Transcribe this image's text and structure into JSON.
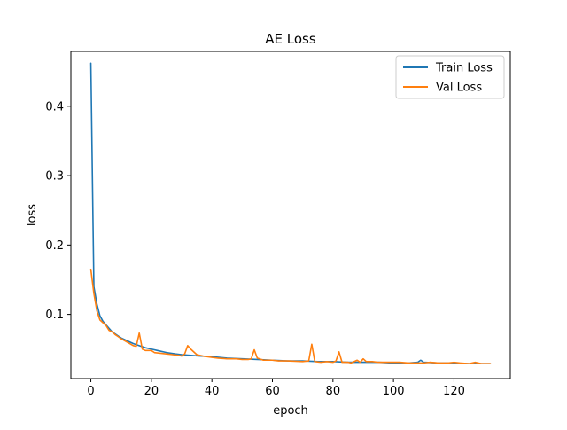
{
  "chart_data": {
    "type": "line",
    "title": "AE Loss",
    "xlabel": "epoch",
    "ylabel": "loss",
    "xlim": [
      -6.6,
      138.6
    ],
    "ylim": [
      0.0075,
      0.479
    ],
    "xticks": [
      0,
      20,
      40,
      60,
      80,
      100,
      120
    ],
    "yticks": [
      0.1,
      0.2,
      0.3,
      0.4
    ],
    "ytick_labels": [
      "0.1",
      "0.2",
      "0.3",
      "0.4"
    ],
    "grid": false,
    "legend_position": "top-right",
    "series": [
      {
        "name": "Train Loss",
        "color": "#1f77b4",
        "points": [
          [
            0,
            0.462
          ],
          [
            1,
            0.14
          ],
          [
            2,
            0.115
          ],
          [
            3,
            0.098
          ],
          [
            4,
            0.09
          ],
          [
            5,
            0.085
          ],
          [
            6,
            0.08
          ],
          [
            7,
            0.075
          ],
          [
            8,
            0.072
          ],
          [
            9,
            0.069
          ],
          [
            10,
            0.066
          ],
          [
            12,
            0.062
          ],
          [
            14,
            0.058
          ],
          [
            16,
            0.055
          ],
          [
            18,
            0.052
          ],
          [
            20,
            0.05
          ],
          [
            22,
            0.048
          ],
          [
            25,
            0.045
          ],
          [
            28,
            0.043
          ],
          [
            30,
            0.042
          ],
          [
            33,
            0.041
          ],
          [
            36,
            0.04
          ],
          [
            40,
            0.039
          ],
          [
            45,
            0.037
          ],
          [
            50,
            0.036
          ],
          [
            55,
            0.035
          ],
          [
            60,
            0.034
          ],
          [
            65,
            0.033
          ],
          [
            70,
            0.033
          ],
          [
            75,
            0.032
          ],
          [
            80,
            0.032
          ],
          [
            85,
            0.031
          ],
          [
            90,
            0.031
          ],
          [
            95,
            0.031
          ],
          [
            100,
            0.03
          ],
          [
            105,
            0.03
          ],
          [
            108,
            0.031
          ],
          [
            109,
            0.034
          ],
          [
            110,
            0.031
          ],
          [
            115,
            0.03
          ],
          [
            120,
            0.03
          ],
          [
            125,
            0.029
          ],
          [
            130,
            0.029
          ],
          [
            132,
            0.029
          ]
        ]
      },
      {
        "name": "Val Loss",
        "color": "#ff7f0e",
        "points": [
          [
            0,
            0.165
          ],
          [
            1,
            0.13
          ],
          [
            2,
            0.105
          ],
          [
            3,
            0.092
          ],
          [
            4,
            0.088
          ],
          [
            5,
            0.084
          ],
          [
            6,
            0.077
          ],
          [
            7,
            0.075
          ],
          [
            8,
            0.071
          ],
          [
            9,
            0.068
          ],
          [
            10,
            0.065
          ],
          [
            12,
            0.06
          ],
          [
            14,
            0.055
          ],
          [
            15,
            0.054
          ],
          [
            16,
            0.073
          ],
          [
            17,
            0.05
          ],
          [
            18,
            0.048
          ],
          [
            20,
            0.048
          ],
          [
            21,
            0.045
          ],
          [
            23,
            0.044
          ],
          [
            25,
            0.043
          ],
          [
            27,
            0.042
          ],
          [
            29,
            0.041
          ],
          [
            30,
            0.04
          ],
          [
            31,
            0.043
          ],
          [
            32,
            0.055
          ],
          [
            33,
            0.05
          ],
          [
            34,
            0.046
          ],
          [
            35,
            0.042
          ],
          [
            37,
            0.04
          ],
          [
            40,
            0.038
          ],
          [
            42,
            0.037
          ],
          [
            45,
            0.036
          ],
          [
            48,
            0.036
          ],
          [
            50,
            0.035
          ],
          [
            52,
            0.035
          ],
          [
            53,
            0.036
          ],
          [
            54,
            0.049
          ],
          [
            55,
            0.037
          ],
          [
            57,
            0.034
          ],
          [
            60,
            0.034
          ],
          [
            62,
            0.033
          ],
          [
            65,
            0.033
          ],
          [
            70,
            0.032
          ],
          [
            72,
            0.033
          ],
          [
            73,
            0.057
          ],
          [
            74,
            0.032
          ],
          [
            76,
            0.031
          ],
          [
            78,
            0.032
          ],
          [
            80,
            0.031
          ],
          [
            81,
            0.033
          ],
          [
            82,
            0.046
          ],
          [
            83,
            0.031
          ],
          [
            85,
            0.031
          ],
          [
            86,
            0.03
          ],
          [
            88,
            0.034
          ],
          [
            89,
            0.031
          ],
          [
            90,
            0.036
          ],
          [
            91,
            0.032
          ],
          [
            93,
            0.032
          ],
          [
            95,
            0.031
          ],
          [
            98,
            0.031
          ],
          [
            100,
            0.031
          ],
          [
            102,
            0.031
          ],
          [
            105,
            0.03
          ],
          [
            108,
            0.03
          ],
          [
            110,
            0.03
          ],
          [
            112,
            0.031
          ],
          [
            115,
            0.03
          ],
          [
            118,
            0.03
          ],
          [
            120,
            0.031
          ],
          [
            122,
            0.03
          ],
          [
            125,
            0.029
          ],
          [
            127,
            0.031
          ],
          [
            129,
            0.029
          ],
          [
            131,
            0.029
          ],
          [
            132,
            0.029
          ]
        ]
      }
    ]
  }
}
